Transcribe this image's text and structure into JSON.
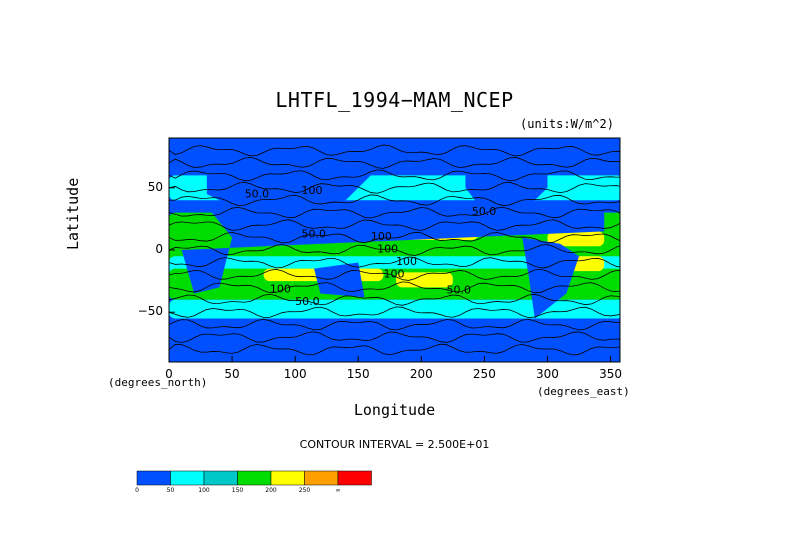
{
  "chart_data": {
    "type": "heatmap",
    "title": "LHTFL_1994−MAM_NCEP",
    "units": "(units:W/m^2)",
    "xlabel": "Longitude",
    "ylabel": "Latitude",
    "x_axis_sub": "(degrees_east)",
    "y_axis_sub": "(degrees_north)",
    "xlim": [
      0,
      357.5
    ],
    "ylim": [
      -90,
      90
    ],
    "x_ticks": [
      "0",
      "50",
      "100",
      "150",
      "200",
      "250",
      "300",
      "350"
    ],
    "y_ticks": [
      "50",
      "0",
      "−50"
    ],
    "contour_interval_text": "CONTOUR INTERVAL = 2.500E+01",
    "contour_labels": [
      "100",
      "100",
      "100",
      "100",
      "100",
      "100",
      "50.0",
      "50.0",
      "50.0",
      "50.0",
      "50.0"
    ],
    "colorbar": {
      "levels": [
        "0",
        "50",
        "100",
        "150",
        "200",
        "250",
        "∞"
      ],
      "colors": [
        "#0050ff",
        "#00ffff",
        "#00c8c8",
        "#00dc00",
        "#ffff00",
        "#ffa000",
        "#ff0000"
      ]
    },
    "ocean_colors": {
      "low": "#0050ff",
      "mid": "#00ffff",
      "high": "#00dc00",
      "peak": "#ffff00",
      "land": "#0050ff"
    }
  }
}
